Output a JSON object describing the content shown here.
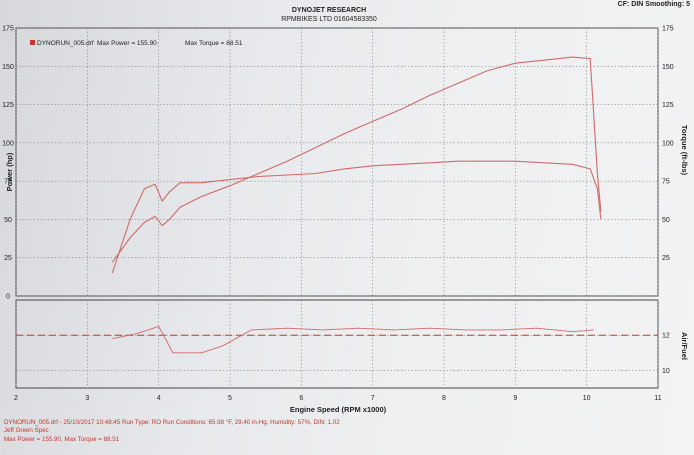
{
  "header": {
    "title": "DYNOJET RESEARCH",
    "subtitle": "RPMBIKES LTD 01604583350",
    "settings": "CF: DIN  Smoothing: 5"
  },
  "legend": {
    "file": "DYNORUN_005.drf",
    "max_power": "Max Power = 155.90",
    "max_torque": "Max Torque = 88.51"
  },
  "footer": {
    "line1": "DYNORUN_005.drf - 25/10/2017 10:48:45  Run Type: RO  Run Conditions: 65.98 °F, 29.40 in-Hg,  Humidity: 57%, DIN: 1.02",
    "line2": "Jeff Green Spec",
    "line3": "Max Power = 155.90, Max Torque = 88.51"
  },
  "colors": {
    "curve": "#cf6a6a",
    "afr_target": "#c0392b",
    "footer_text": "#c0392b"
  },
  "chart_data": [
    {
      "type": "line",
      "title": "DYNOJET RESEARCH",
      "xlabel": "Engine Speed (RPM x1000)",
      "ylabel": "Power (hp)",
      "ylabel_right": "Torque (ft-lbs)",
      "xlim": [
        2,
        11
      ],
      "ylim": [
        0,
        175
      ],
      "ylim_right": [
        0,
        175
      ],
      "x_ticks": [
        "2",
        "3",
        "4",
        "5",
        "6",
        "7",
        "8",
        "9",
        "10",
        "11"
      ],
      "y_ticks_left": [
        "0",
        "25",
        "50",
        "75",
        "100",
        "125",
        "150",
        "175"
      ],
      "y_ticks_right": [
        "25",
        "50",
        "75",
        "100",
        "125",
        "150",
        "175"
      ],
      "grid": true,
      "legend_position": "top-left",
      "series": [
        {
          "name": "Max Power = 155.90",
          "axis": "left",
          "x": [
            3.35,
            3.6,
            3.8,
            3.95,
            4.05,
            4.15,
            4.3,
            4.6,
            5.0,
            5.4,
            5.8,
            6.2,
            6.6,
            7.0,
            7.4,
            7.8,
            8.2,
            8.6,
            9.0,
            9.4,
            9.8,
            10.05,
            10.15,
            10.2
          ],
          "y": [
            22,
            38,
            48,
            52,
            46,
            50,
            58,
            65,
            72,
            80,
            88,
            97,
            106,
            114,
            122,
            131,
            139,
            147,
            152,
            154,
            156,
            155,
            80,
            55
          ]
        },
        {
          "name": "Max Torque = 88.51",
          "axis": "right",
          "x": [
            3.35,
            3.6,
            3.8,
            3.95,
            4.05,
            4.15,
            4.3,
            4.6,
            5.0,
            5.4,
            5.8,
            6.2,
            6.6,
            7.0,
            7.4,
            7.8,
            8.2,
            8.6,
            9.0,
            9.4,
            9.8,
            10.05,
            10.15,
            10.2
          ],
          "y": [
            15,
            50,
            70,
            73,
            62,
            68,
            74,
            74,
            76,
            78,
            79,
            80,
            83,
            85,
            86,
            87,
            88,
            88,
            88,
            87,
            86,
            83,
            70,
            50
          ]
        }
      ]
    },
    {
      "type": "line",
      "xlabel": "Engine Speed (RPM x1000)",
      "ylabel_right": "Air/Fuel",
      "xlim": [
        2,
        11
      ],
      "ylim": [
        9,
        14
      ],
      "y_ticks_right": [
        "10",
        "12"
      ],
      "target": 12,
      "series": [
        {
          "axis": "right",
          "x": [
            3.35,
            3.7,
            4.0,
            4.2,
            4.6,
            4.9,
            5.3,
            5.8,
            6.3,
            6.8,
            7.3,
            7.8,
            8.3,
            8.8,
            9.3,
            9.8,
            10.1
          ],
          "y": [
            11.8,
            12.1,
            12.5,
            11.0,
            11.0,
            11.4,
            12.3,
            12.4,
            12.3,
            12.4,
            12.3,
            12.4,
            12.3,
            12.3,
            12.4,
            12.2,
            12.3
          ]
        }
      ]
    }
  ]
}
